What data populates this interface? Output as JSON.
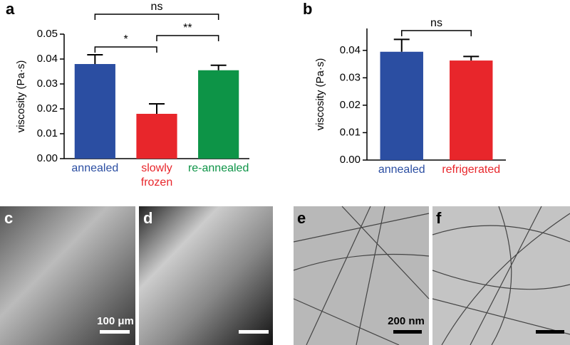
{
  "chart_data": [
    {
      "type": "bar",
      "panel": "a",
      "ylabel": "viscosity (Pa·s)",
      "categories": [
        "annealed",
        "slowly\nfrozen",
        "re-annealed"
      ],
      "values": [
        0.038,
        0.018,
        0.0355
      ],
      "errors": [
        0.0037,
        0.004,
        0.002
      ],
      "colors": [
        "#2b4ea2",
        "#e8262b",
        "#0d9447"
      ],
      "ylim": [
        0,
        0.05
      ],
      "yticks": [
        {
          "value": 0,
          "label": "0.00"
        },
        0.01,
        0.02,
        0.03,
        0.04,
        0.05
      ],
      "significance": [
        {
          "from": 0,
          "to": 2,
          "label": "ns"
        },
        {
          "from": 0,
          "to": 1,
          "label": "*"
        },
        {
          "from": 1,
          "to": 2,
          "label": "**"
        }
      ]
    },
    {
      "type": "bar",
      "panel": "b",
      "ylabel": "viscosity (Pa·s)",
      "categories": [
        "annealed",
        "refrigerated"
      ],
      "values": [
        0.0395,
        0.0363
      ],
      "errors": [
        0.0045,
        0.0015
      ],
      "colors": [
        "#2b4ea2",
        "#e8262b"
      ],
      "ylim": [
        0,
        0.048
      ],
      "yticks": [
        {
          "value": 0,
          "label": "0.00"
        },
        0.01,
        0.02,
        0.03,
        0.04
      ],
      "significance": [
        {
          "from": 0,
          "to": 1,
          "label": "ns"
        }
      ]
    }
  ],
  "panels": [
    {
      "label": "c",
      "scale_bar": "100 μm"
    },
    {
      "label": "d"
    },
    {
      "label": "e",
      "scale_bar": "200 nm"
    },
    {
      "label": "f"
    }
  ]
}
